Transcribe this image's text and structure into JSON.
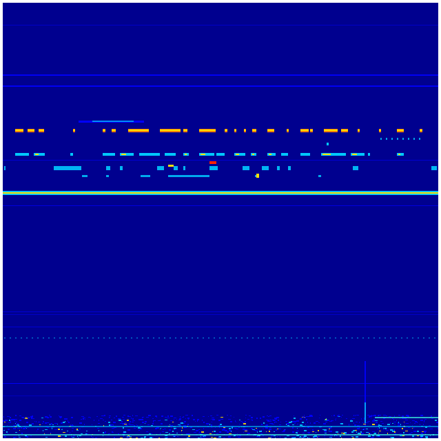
{
  "spectrogram": {
    "colormap": "jet",
    "colors": {
      "background": "#00008f",
      "low": "#0000ff",
      "mid": "#00c8ff",
      "cyan": "#40ffe0",
      "yellow": "#ffe000",
      "orange": "#ff8000",
      "red": "#ff2000"
    }
  }
}
